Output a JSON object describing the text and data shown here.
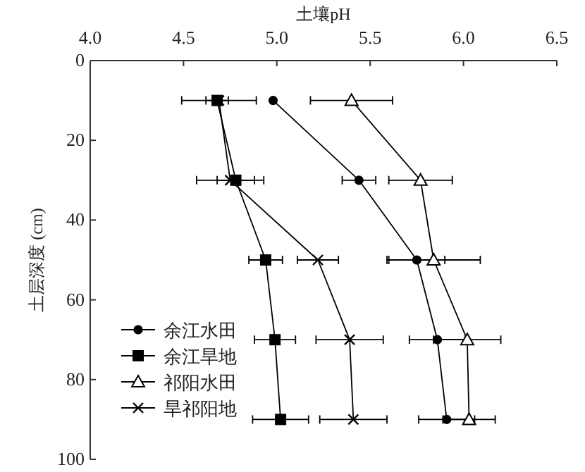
{
  "chart_data": {
    "type": "line",
    "xlabel": "土壤pH",
    "ylabel": "土层深度 (cm)",
    "xlim": [
      4.0,
      6.5
    ],
    "xticks": [
      {
        "value": 4.0,
        "label": "4.0"
      },
      {
        "value": 4.5,
        "label": "4.5"
      },
      {
        "value": 5.0,
        "label": "5.0"
      },
      {
        "value": 5.5,
        "label": "5.5"
      },
      {
        "value": 6.0,
        "label": "6.0"
      },
      {
        "value": 6.5,
        "label": "6.5"
      }
    ],
    "ylim": [
      100,
      0
    ],
    "yticks": [
      0,
      20,
      40,
      60,
      80,
      100
    ],
    "legend": "bottom left",
    "line_style": "solid",
    "series": [
      {
        "name": "余江水田",
        "color": "#000000",
        "marker": "circle",
        "x": [
          4.98,
          5.44,
          5.75,
          5.86,
          5.91
        ],
        "values": [
          10,
          30,
          50,
          70,
          90
        ],
        "xerrors": [
          null,
          0.09,
          0.15,
          0.15,
          0.15
        ]
      },
      {
        "name": "余江旱地",
        "color": "#000000",
        "marker": "square",
        "x": [
          4.68,
          4.78,
          4.94,
          4.99,
          5.02
        ],
        "values": [
          10,
          30,
          50,
          70,
          90
        ],
        "xerrors": [
          0.06,
          0.1,
          0.09,
          0.11,
          0.15
        ]
      },
      {
        "name": "祁阳水田",
        "color": "#000000",
        "marker": "triangle",
        "x": [
          5.4,
          5.77,
          5.84,
          6.02,
          6.03
        ],
        "values": [
          10,
          30,
          50,
          70,
          90
        ],
        "xerrors": [
          0.22,
          0.17,
          0.25,
          0.18,
          0.14
        ]
      },
      {
        "name": "旱祁阳地",
        "color": "#000000",
        "marker": "cross",
        "x": [
          4.69,
          4.75,
          5.22,
          5.39,
          5.41
        ],
        "values": [
          10,
          30,
          50,
          70,
          90
        ],
        "xerrors": [
          0.2,
          0.18,
          0.11,
          0.18,
          0.18
        ]
      }
    ]
  }
}
